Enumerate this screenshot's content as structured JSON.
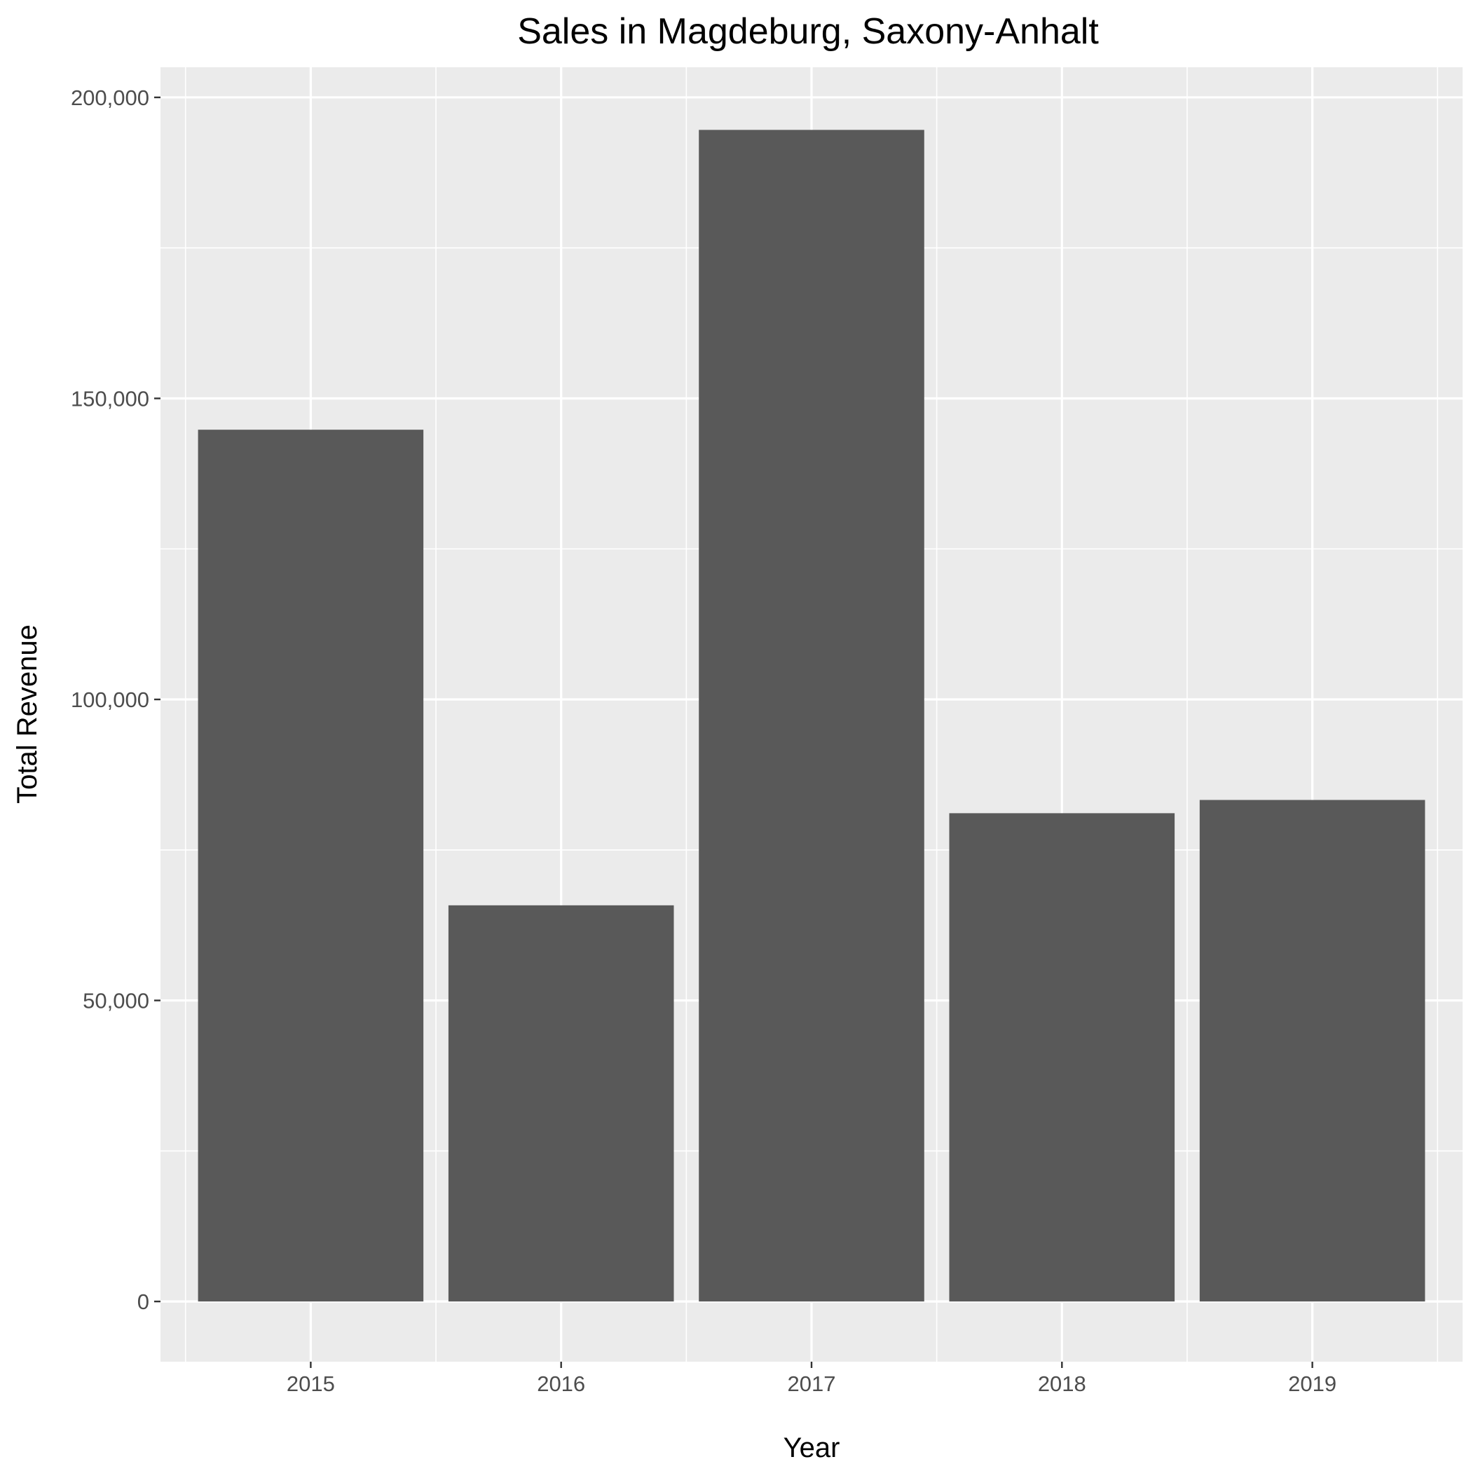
{
  "chart_data": {
    "type": "bar",
    "title": "Sales in Magdeburg, Saxony-Anhalt",
    "xlabel": "Year",
    "ylabel": "Total Revenue",
    "categories": [
      "2015",
      "2016",
      "2017",
      "2018",
      "2019"
    ],
    "values": [
      144800,
      65800,
      194600,
      81100,
      83300
    ],
    "ylim": [
      -10000,
      205000
    ],
    "yticks": [
      0,
      50000,
      100000,
      150000,
      200000
    ],
    "ytick_labels": [
      "0",
      "50,000",
      "100,000",
      "150,000",
      "200,000"
    ],
    "grid": true,
    "legend": "none"
  },
  "colors": {
    "panel_background": "#EBEBEB",
    "grid_line": "#FFFFFF",
    "bar_fill": "#595959",
    "tick_color": "#333333",
    "tick_label_color": "#4D4D4D",
    "text_color": "#000000"
  }
}
